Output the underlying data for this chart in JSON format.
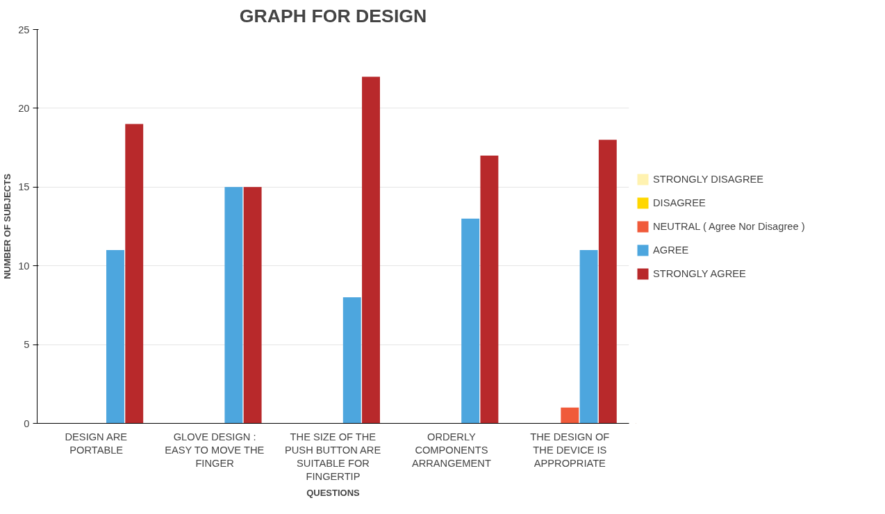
{
  "chart_data": {
    "type": "bar",
    "title": "GRAPH FOR DESIGN",
    "xlabel": "QUESTIONS",
    "ylabel": "NUMBER OF SUBJECTS",
    "categories": [
      "DESIGN ARE PORTABLE",
      "GLOVE DESIGN : EASY TO MOVE THE FINGER",
      "THE SIZE OF THE PUSH BUTTON ARE SUITABLE FOR FINGERTIP",
      "ORDERLY COMPONENTS ARRANGEMENT",
      "THE DESIGN OF THE DEVICE IS APPROPRIATE"
    ],
    "series": [
      {
        "name": "STRONGLY DISAGREE",
        "color": "#fff2b0",
        "values": [
          0,
          0,
          0,
          0,
          0
        ]
      },
      {
        "name": "DISAGREE",
        "color": "#ffd700",
        "values": [
          0,
          0,
          0,
          0,
          0
        ]
      },
      {
        "name": "NEUTRAL ( Agree Nor Disagree )",
        "color": "#f05a3a",
        "values": [
          0,
          0,
          0,
          0,
          1
        ]
      },
      {
        "name": "AGREE",
        "color": "#4da6de",
        "values": [
          11,
          15,
          8,
          13,
          11
        ]
      },
      {
        "name": "STRONGLY AGREE",
        "color": "#b8292b",
        "values": [
          19,
          15,
          22,
          17,
          18
        ]
      }
    ],
    "ylim": [
      0,
      25
    ],
    "yticks": [
      0,
      5,
      10,
      15,
      20,
      25
    ],
    "grid": "y",
    "legend": "right"
  }
}
